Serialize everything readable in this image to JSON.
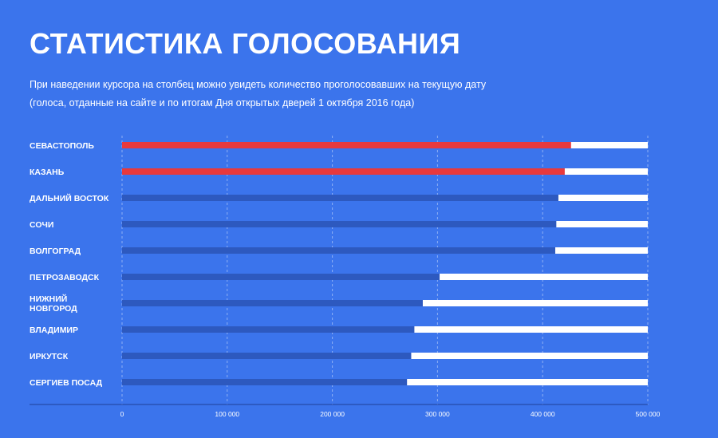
{
  "header": {
    "title": "СТАТИСТИКА ГОЛОСОВАНИЯ",
    "subtitle_line1": "При наведении курсора на столбец можно увидеть количество проголосовавших на текущую дату",
    "subtitle_line2": "(голоса, отданные на сайте и по итогам Дня открытых дверей 1 октября 2016 года)"
  },
  "colors": {
    "background": "#3b74ec",
    "highlight_bar": "#e8393d",
    "bar": "#2d59bf",
    "track": "#ffffff",
    "grid": "#8fb0f4",
    "axis": "#1f3f99"
  },
  "chart_data": {
    "type": "bar",
    "orientation": "horizontal",
    "categories": [
      "СЕВАСТОПОЛЬ",
      "КАЗАНЬ",
      "ДАЛЬНИЙ ВОСТОК",
      "СОЧИ",
      "ВОЛГОГРАД",
      "ПЕТРОЗАВОДСК",
      "НИЖНИЙ НОВГОРОД",
      "ВЛАДИМИР",
      "ИРКУТСК",
      "СЕРГИЕВ ПОСАД"
    ],
    "values": [
      427000,
      421000,
      415000,
      413000,
      412000,
      302000,
      286000,
      278000,
      275000,
      271000
    ],
    "highlighted": [
      true,
      true,
      false,
      false,
      false,
      false,
      false,
      false,
      false,
      false
    ],
    "xlim": [
      0,
      500000
    ],
    "xticks": [
      0,
      100000,
      200000,
      300000,
      400000,
      500000
    ],
    "xtick_labels": [
      "0",
      "100 000",
      "200 000",
      "300 000",
      "400 000",
      "500 000"
    ],
    "grid": true,
    "title": "СТАТИСТИКА ГОЛОСОВАНИЯ",
    "xlabel": "",
    "ylabel": ""
  }
}
